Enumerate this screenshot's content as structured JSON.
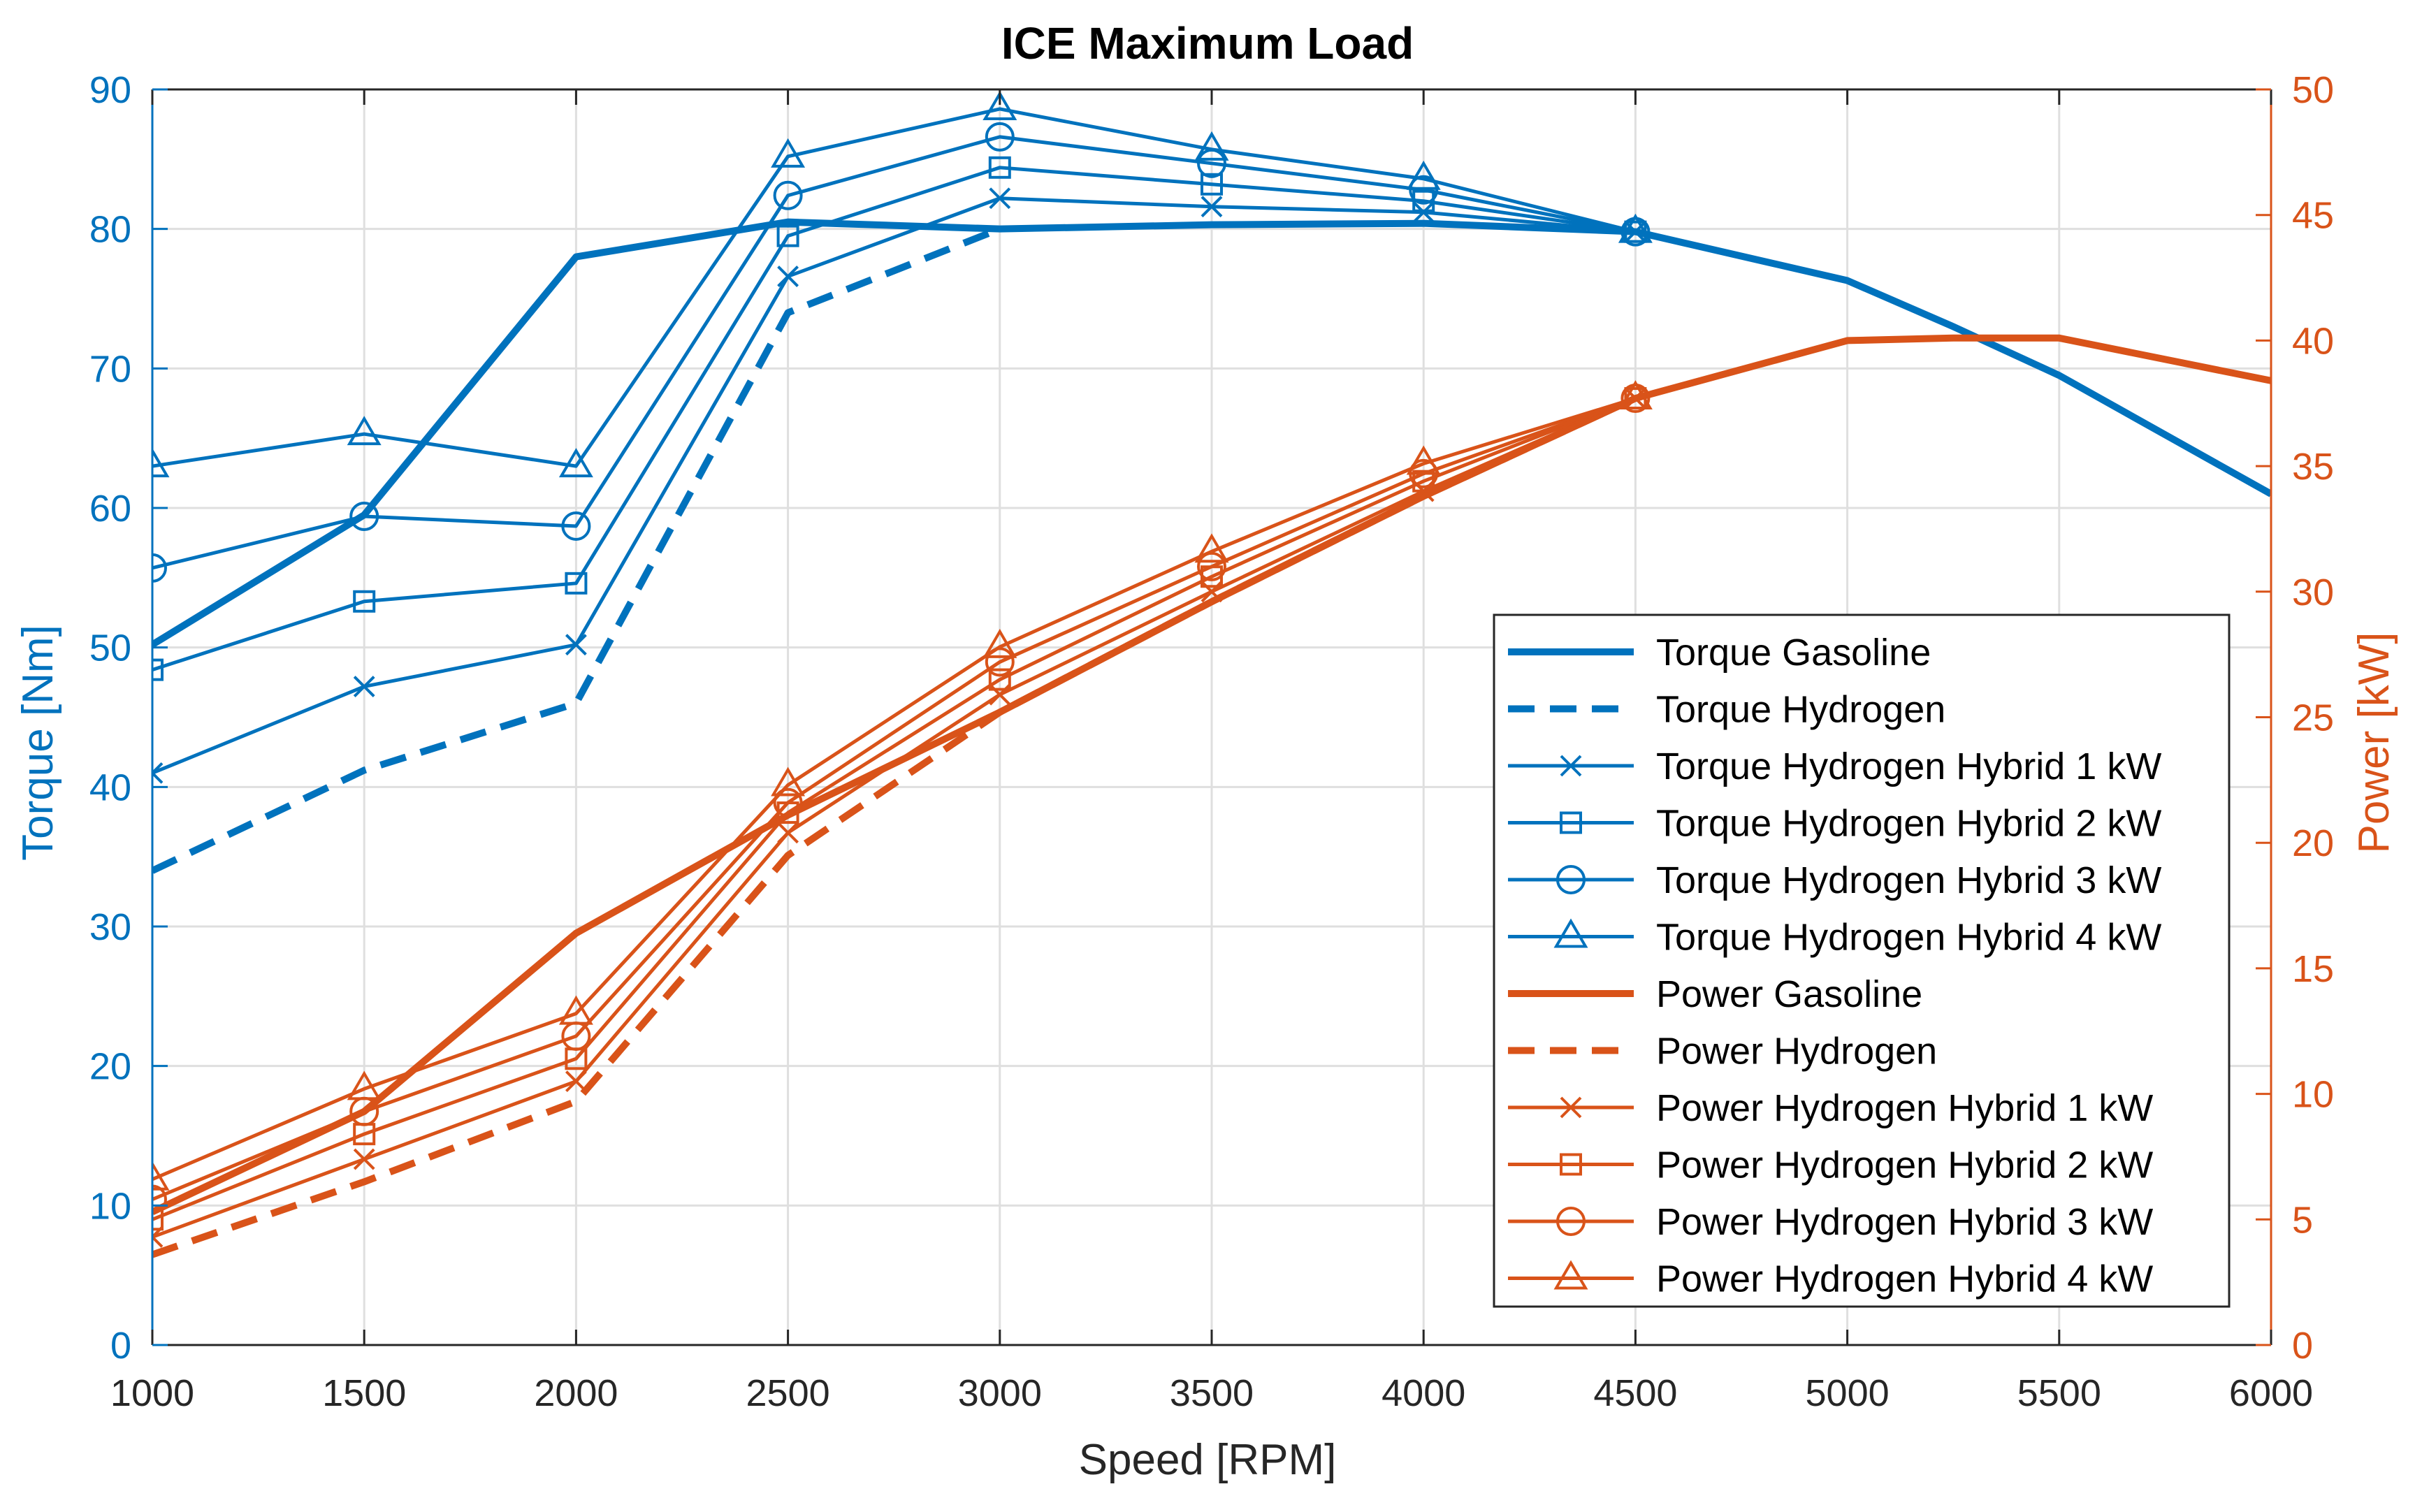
{
  "chart_data": {
    "type": "line",
    "title": "ICE Maximum Load",
    "xlabel": "Speed [RPM]",
    "ylabel_left": "Torque [Nm]",
    "ylabel_right": "Power [kW]",
    "xlim": [
      1000,
      6000
    ],
    "ylim_left": [
      0,
      90
    ],
    "ylim_right": [
      0,
      50
    ],
    "xticks": [
      1000,
      1500,
      2000,
      2500,
      3000,
      3500,
      4000,
      4500,
      5000,
      5500,
      6000
    ],
    "yticks_left": [
      0,
      10,
      20,
      30,
      40,
      50,
      60,
      70,
      80,
      90
    ],
    "yticks_right": [
      0,
      5,
      10,
      15,
      20,
      25,
      30,
      35,
      40,
      45,
      50
    ],
    "grid": true,
    "legend_position": "bottom-right",
    "colors": {
      "torque": "#0072BD",
      "power": "#D95319"
    },
    "series": [
      {
        "name": "Torque Gasoline",
        "axis": "left",
        "group": "torque",
        "style": "solid-thick",
        "marker": "none",
        "x": [
          1000,
          1500,
          2000,
          2500,
          3000,
          3500,
          4000,
          4500,
          5000,
          5250,
          5500,
          6000
        ],
        "y": [
          50.2,
          59.5,
          78,
          80.5,
          80,
          80.3,
          80.4,
          79.8,
          76.3,
          73,
          69.5,
          61
        ]
      },
      {
        "name": "Torque Hydrogen",
        "axis": "left",
        "group": "torque",
        "style": "dashed",
        "marker": "none",
        "x": [
          1000,
          1500,
          2000,
          2500,
          3000
        ],
        "y": [
          34,
          41.2,
          46,
          74,
          80
        ]
      },
      {
        "name": "Torque Hydrogen Hybrid 1 kW",
        "axis": "left",
        "group": "torque",
        "style": "solid",
        "marker": "x",
        "x": [
          1000,
          1500,
          2000,
          2500,
          3000,
          3500,
          4000,
          4500
        ],
        "y": [
          41,
          47.2,
          50.2,
          76.6,
          82.2,
          81.6,
          81.2,
          79.8
        ]
      },
      {
        "name": "Torque Hydrogen Hybrid 2 kW",
        "axis": "left",
        "group": "torque",
        "style": "solid",
        "marker": "square",
        "x": [
          1000,
          1500,
          2000,
          2500,
          3000,
          3500,
          4000,
          4500
        ],
        "y": [
          48.4,
          53.3,
          54.6,
          79.5,
          84.4,
          83.2,
          82,
          79.8
        ]
      },
      {
        "name": "Torque Hydrogen Hybrid 3 kW",
        "axis": "left",
        "group": "torque",
        "style": "solid",
        "marker": "circle",
        "x": [
          1000,
          1500,
          2000,
          2500,
          3000,
          3500,
          4000,
          4500
        ],
        "y": [
          55.7,
          59.4,
          58.7,
          82.4,
          86.6,
          84.7,
          82.8,
          79.8
        ]
      },
      {
        "name": "Torque Hydrogen Hybrid 4 kW",
        "axis": "left",
        "group": "torque",
        "style": "solid",
        "marker": "triangle",
        "x": [
          1000,
          1500,
          2000,
          2500,
          3000,
          3500,
          4000,
          4500
        ],
        "y": [
          63,
          65.3,
          63,
          85.2,
          88.6,
          85.7,
          83.6,
          79.8
        ]
      },
      {
        "name": "Power Gasoline",
        "axis": "right",
        "group": "power",
        "style": "solid-thick",
        "marker": "none",
        "x": [
          1000,
          1500,
          2000,
          2500,
          3000,
          3500,
          4000,
          4500,
          5000,
          5250,
          5500,
          6000
        ],
        "y": [
          5.3,
          9.3,
          16.4,
          21.1,
          25.2,
          29.6,
          33.8,
          37.7,
          40,
          40.1,
          40.1,
          38.4
        ]
      },
      {
        "name": "Power Hydrogen",
        "axis": "right",
        "group": "power",
        "style": "dashed",
        "marker": "none",
        "x": [
          1000,
          1500,
          2000,
          2500,
          3000,
          3500,
          4000,
          4500
        ],
        "y": [
          3.6,
          6.5,
          9.7,
          19.5,
          25.2,
          29.6,
          33.8,
          37.7
        ]
      },
      {
        "name": "Power Hydrogen Hybrid 1 kW",
        "axis": "right",
        "group": "power",
        "style": "solid",
        "marker": "x",
        "x": [
          1000,
          1500,
          2000,
          2500,
          3000,
          3500,
          4000,
          4500
        ],
        "y": [
          4.3,
          7.4,
          10.5,
          20.4,
          25.9,
          30,
          34,
          37.7
        ]
      },
      {
        "name": "Power Hydrogen Hybrid 2 kW",
        "axis": "right",
        "group": "power",
        "style": "solid",
        "marker": "square",
        "x": [
          1000,
          1500,
          2000,
          2500,
          3000,
          3500,
          4000,
          4500
        ],
        "y": [
          5,
          8.4,
          11.4,
          21.2,
          26.5,
          30.6,
          34.4,
          37.7
        ]
      },
      {
        "name": "Power Hydrogen Hybrid 3 kW",
        "axis": "right",
        "group": "power",
        "style": "solid",
        "marker": "circle",
        "x": [
          1000,
          1500,
          2000,
          2500,
          3000,
          3500,
          4000,
          4500
        ],
        "y": [
          5.8,
          9.3,
          12.3,
          21.6,
          27.2,
          31,
          34.7,
          37.7
        ]
      },
      {
        "name": "Power Hydrogen Hybrid 4 kW",
        "axis": "right",
        "group": "power",
        "style": "solid",
        "marker": "triangle",
        "x": [
          1000,
          1500,
          2000,
          2500,
          3000,
          3500,
          4000,
          4500
        ],
        "y": [
          6.6,
          10.2,
          13.2,
          22.3,
          27.8,
          31.6,
          35.1,
          37.7
        ]
      }
    ]
  }
}
